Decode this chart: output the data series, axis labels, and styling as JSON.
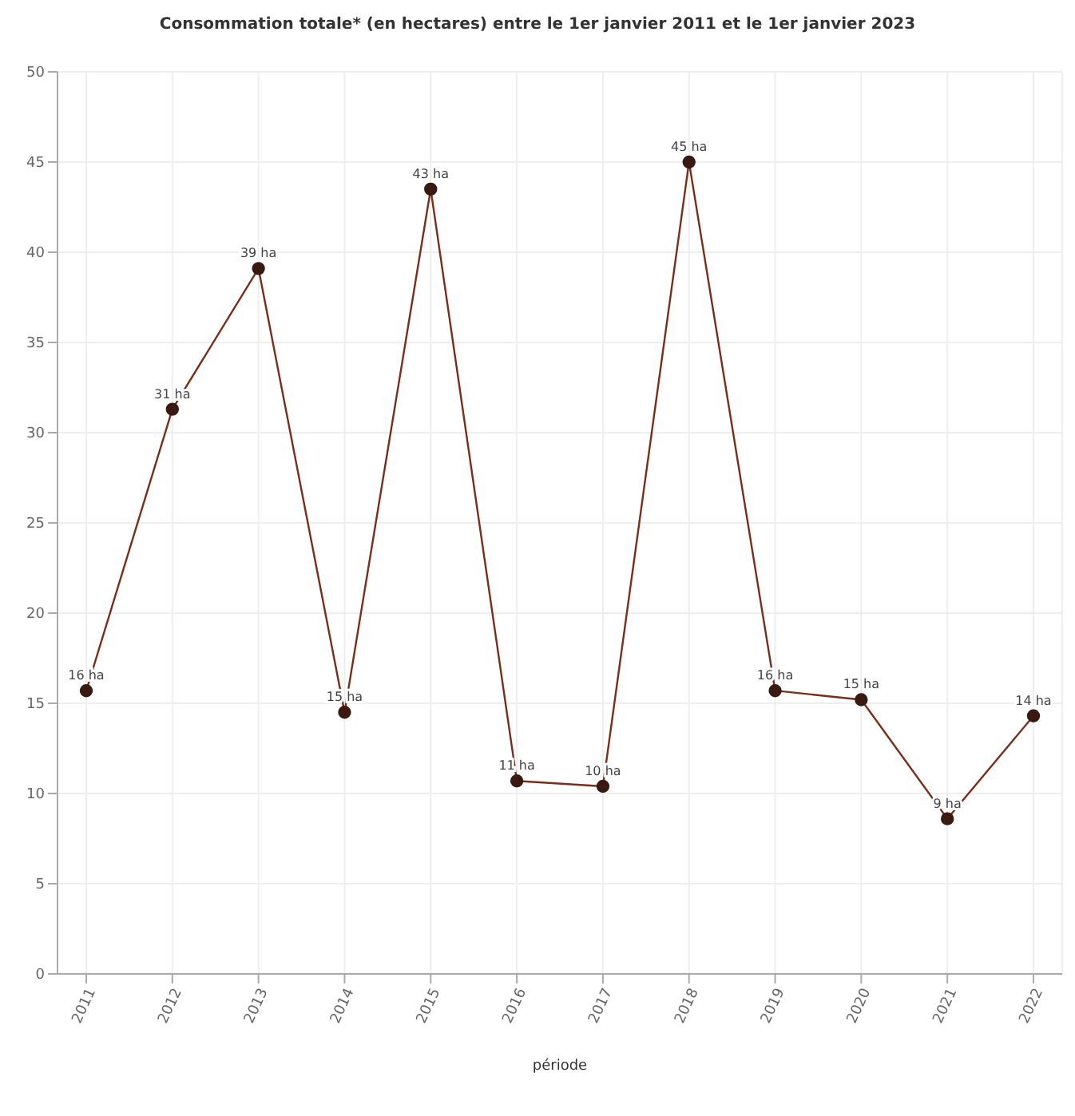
{
  "chart_data": {
    "type": "line",
    "title": "Consommation totale* (en hectares) entre le 1er janvier 2011 et le 1er janvier 2023",
    "xlabel": "période",
    "categories": [
      "2011",
      "2012",
      "2013",
      "2014",
      "2015",
      "2016",
      "2017",
      "2018",
      "2019",
      "2020",
      "2021",
      "2022"
    ],
    "series": [
      {
        "color": "#7a2e1a",
        "values": [
          15.7,
          31.3,
          39.1,
          14.5,
          43.5,
          10.7,
          10.4,
          45,
          15.7,
          15.2,
          8.6,
          14.3
        ],
        "value_labels": [
          "16 ha",
          "31 ha",
          "39 ha",
          "15 ha",
          "43 ha",
          "11 ha",
          "10 ha",
          "45 ha",
          "16 ha",
          "15 ha",
          "9 ha",
          "14 ha"
        ]
      }
    ],
    "ylim": [
      0,
      50
    ],
    "yticks": [
      0,
      5,
      10,
      15,
      20,
      25,
      30,
      35,
      40,
      45,
      50
    ],
    "grid": true,
    "marker": "circle",
    "line_style": "solid"
  }
}
